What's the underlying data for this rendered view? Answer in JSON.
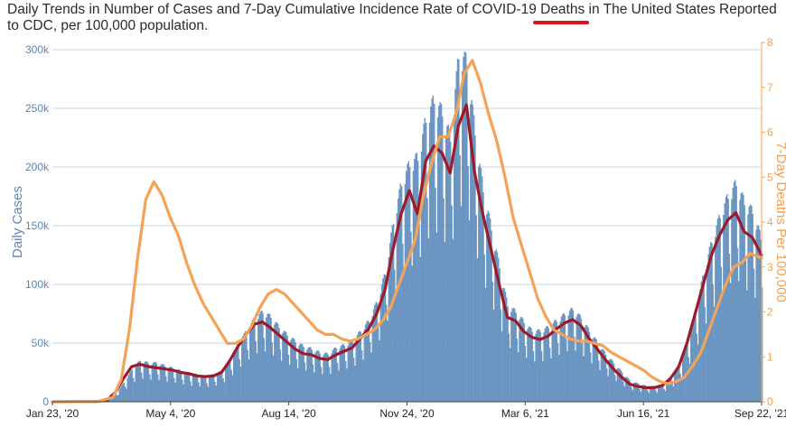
{
  "header": {
    "title": "Daily Trends in Number of Cases and 7-Day Cumulative Incidence Rate of COVID-19 Deaths in The United States Reported to CDC, per 100,000 population."
  },
  "colors": {
    "bars": "#6f9cc8",
    "bar_edge": "#4a78aa",
    "avg_line": "#9b1b2a",
    "deaths_line": "#f4a257",
    "grid": "#c8d6e8",
    "left_axis_text": "#5b86b5",
    "right_axis_text": "#f0a050",
    "underline_accent": "#d6141c"
  },
  "chart_data": {
    "type": "bar",
    "xlabel": "",
    "ylabel": "Daily Cases",
    "y2label": "7-Day Deaths Per 100,000",
    "ylim": [
      0,
      300000
    ],
    "y2lim": [
      0,
      8
    ],
    "yticks": [
      "0",
      "50k",
      "100k",
      "150k",
      "200k",
      "250k",
      "300k"
    ],
    "y2ticks": [
      "0",
      "1",
      "2",
      "3",
      "4",
      "5",
      "6",
      "7",
      "8"
    ],
    "xticks": [
      "Jan 23, '20",
      "May 4, '20",
      "Aug 14, '20",
      "Nov 24, '20",
      "Mar 6, '21",
      "Jun 16, '21",
      "Sep 22, '21"
    ],
    "x_start": "2020-01-23",
    "x_end": "2021-09-22",
    "grid": true,
    "series": [
      {
        "kind": "bar",
        "axis": "left",
        "unit": "cases",
        "points": [
          [
            "2020-01-23",
            0
          ],
          [
            "2020-03-01",
            200
          ],
          [
            "2020-03-10",
            1000
          ],
          [
            "2020-03-17",
            6000
          ],
          [
            "2020-03-24",
            15000
          ],
          [
            "2020-03-31",
            25000
          ],
          [
            "2020-04-07",
            32000
          ],
          [
            "2020-04-14",
            30000
          ],
          [
            "2020-04-21",
            30000
          ],
          [
            "2020-04-28",
            28000
          ],
          [
            "2020-05-05",
            26000
          ],
          [
            "2020-05-12",
            24000
          ],
          [
            "2020-05-19",
            22000
          ],
          [
            "2020-05-26",
            21000
          ],
          [
            "2020-06-02",
            20000
          ],
          [
            "2020-06-09",
            21000
          ],
          [
            "2020-06-16",
            24000
          ],
          [
            "2020-06-23",
            33000
          ],
          [
            "2020-06-30",
            45000
          ],
          [
            "2020-07-07",
            55000
          ],
          [
            "2020-07-14",
            65000
          ],
          [
            "2020-07-21",
            70000
          ],
          [
            "2020-07-28",
            66000
          ],
          [
            "2020-08-04",
            58000
          ],
          [
            "2020-08-11",
            52000
          ],
          [
            "2020-08-18",
            47000
          ],
          [
            "2020-08-25",
            43000
          ],
          [
            "2020-09-01",
            41000
          ],
          [
            "2020-09-08",
            38000
          ],
          [
            "2020-09-15",
            37000
          ],
          [
            "2020-09-22",
            42000
          ],
          [
            "2020-09-29",
            44000
          ],
          [
            "2020-10-06",
            47000
          ],
          [
            "2020-10-13",
            55000
          ],
          [
            "2020-10-20",
            63000
          ],
          [
            "2020-10-27",
            78000
          ],
          [
            "2020-11-03",
            100000
          ],
          [
            "2020-11-10",
            140000
          ],
          [
            "2020-11-17",
            170000
          ],
          [
            "2020-11-24",
            185000
          ],
          [
            "2020-12-01",
            190000
          ],
          [
            "2020-12-08",
            220000
          ],
          [
            "2020-12-15",
            235000
          ],
          [
            "2020-12-22",
            225000
          ],
          [
            "2020-12-29",
            205000
          ],
          [
            "2021-01-05",
            270000
          ],
          [
            "2021-01-12",
            265000
          ],
          [
            "2021-01-19",
            210000
          ],
          [
            "2021-01-26",
            165000
          ],
          [
            "2021-02-02",
            135000
          ],
          [
            "2021-02-09",
            105000
          ],
          [
            "2021-02-16",
            75000
          ],
          [
            "2021-02-23",
            70000
          ],
          [
            "2021-03-02",
            62000
          ],
          [
            "2021-03-09",
            55000
          ],
          [
            "2021-03-16",
            55000
          ],
          [
            "2021-03-23",
            58000
          ],
          [
            "2021-03-30",
            63000
          ],
          [
            "2021-04-06",
            68000
          ],
          [
            "2021-04-13",
            72000
          ],
          [
            "2021-04-20",
            65000
          ],
          [
            "2021-04-27",
            55000
          ],
          [
            "2021-05-04",
            46000
          ],
          [
            "2021-05-11",
            37000
          ],
          [
            "2021-05-18",
            30000
          ],
          [
            "2021-05-25",
            23000
          ],
          [
            "2021-06-01",
            16000
          ],
          [
            "2021-06-08",
            14000
          ],
          [
            "2021-06-15",
            12000
          ],
          [
            "2021-06-22",
            12000
          ],
          [
            "2021-06-29",
            13000
          ],
          [
            "2021-07-06",
            18000
          ],
          [
            "2021-07-13",
            28000
          ],
          [
            "2021-07-20",
            45000
          ],
          [
            "2021-07-27",
            70000
          ],
          [
            "2021-08-03",
            100000
          ],
          [
            "2021-08-10",
            125000
          ],
          [
            "2021-08-17",
            145000
          ],
          [
            "2021-08-24",
            160000
          ],
          [
            "2021-08-31",
            170000
          ],
          [
            "2021-09-07",
            155000
          ],
          [
            "2021-09-14",
            148000
          ],
          [
            "2021-09-22",
            125000
          ]
        ]
      },
      {
        "kind": "line",
        "axis": "left",
        "unit": "cases",
        "points": [
          [
            "2020-01-23",
            0
          ],
          [
            "2020-03-01",
            200
          ],
          [
            "2020-03-10",
            1500
          ],
          [
            "2020-03-17",
            8000
          ],
          [
            "2020-03-24",
            20000
          ],
          [
            "2020-03-31",
            30000
          ],
          [
            "2020-04-07",
            32000
          ],
          [
            "2020-04-14",
            30000
          ],
          [
            "2020-04-21",
            29000
          ],
          [
            "2020-04-28",
            28000
          ],
          [
            "2020-05-05",
            27000
          ],
          [
            "2020-05-12",
            25000
          ],
          [
            "2020-05-19",
            24000
          ],
          [
            "2020-05-26",
            22000
          ],
          [
            "2020-06-02",
            21500
          ],
          [
            "2020-06-09",
            22000
          ],
          [
            "2020-06-16",
            25000
          ],
          [
            "2020-06-23",
            35000
          ],
          [
            "2020-06-30",
            47000
          ],
          [
            "2020-07-07",
            57000
          ],
          [
            "2020-07-14",
            66000
          ],
          [
            "2020-07-21",
            68000
          ],
          [
            "2020-07-28",
            63000
          ],
          [
            "2020-08-04",
            57000
          ],
          [
            "2020-08-11",
            51000
          ],
          [
            "2020-08-18",
            45000
          ],
          [
            "2020-08-25",
            41000
          ],
          [
            "2020-09-01",
            40000
          ],
          [
            "2020-09-08",
            37000
          ],
          [
            "2020-09-15",
            36000
          ],
          [
            "2020-09-22",
            40000
          ],
          [
            "2020-09-29",
            43000
          ],
          [
            "2020-10-06",
            46000
          ],
          [
            "2020-10-13",
            54000
          ],
          [
            "2020-10-20",
            62000
          ],
          [
            "2020-10-27",
            75000
          ],
          [
            "2020-11-03",
            95000
          ],
          [
            "2020-11-10",
            130000
          ],
          [
            "2020-11-17",
            160000
          ],
          [
            "2020-11-24",
            180000
          ],
          [
            "2020-12-01",
            160000
          ],
          [
            "2020-12-08",
            205000
          ],
          [
            "2020-12-15",
            218000
          ],
          [
            "2020-12-22",
            212000
          ],
          [
            "2020-12-29",
            195000
          ],
          [
            "2021-01-05",
            235000
          ],
          [
            "2021-01-12",
            253000
          ],
          [
            "2021-01-19",
            195000
          ],
          [
            "2021-01-26",
            160000
          ],
          [
            "2021-02-02",
            130000
          ],
          [
            "2021-02-09",
            100000
          ],
          [
            "2021-02-16",
            72000
          ],
          [
            "2021-02-23",
            69000
          ],
          [
            "2021-03-02",
            60000
          ],
          [
            "2021-03-09",
            55000
          ],
          [
            "2021-03-16",
            53000
          ],
          [
            "2021-03-23",
            56000
          ],
          [
            "2021-03-30",
            62000
          ],
          [
            "2021-04-06",
            67000
          ],
          [
            "2021-04-13",
            70000
          ],
          [
            "2021-04-20",
            65000
          ],
          [
            "2021-04-27",
            54000
          ],
          [
            "2021-05-04",
            45000
          ],
          [
            "2021-05-11",
            36000
          ],
          [
            "2021-05-18",
            28000
          ],
          [
            "2021-05-25",
            21000
          ],
          [
            "2021-06-01",
            15000
          ],
          [
            "2021-06-08",
            13000
          ],
          [
            "2021-06-15",
            12000
          ],
          [
            "2021-06-22",
            12000
          ],
          [
            "2021-06-29",
            14000
          ],
          [
            "2021-07-06",
            20000
          ],
          [
            "2021-07-13",
            30000
          ],
          [
            "2021-07-20",
            50000
          ],
          [
            "2021-07-27",
            75000
          ],
          [
            "2021-08-03",
            100000
          ],
          [
            "2021-08-10",
            125000
          ],
          [
            "2021-08-17",
            142000
          ],
          [
            "2021-08-24",
            155000
          ],
          [
            "2021-08-31",
            161000
          ],
          [
            "2021-09-07",
            145000
          ],
          [
            "2021-09-14",
            140000
          ],
          [
            "2021-09-22",
            125000
          ]
        ]
      },
      {
        "kind": "line",
        "axis": "right",
        "unit": "deaths per 100,000",
        "points": [
          [
            "2020-01-23",
            0
          ],
          [
            "2020-03-01",
            0
          ],
          [
            "2020-03-15",
            0.1
          ],
          [
            "2020-03-22",
            0.5
          ],
          [
            "2020-03-29",
            1.6
          ],
          [
            "2020-04-05",
            3.2
          ],
          [
            "2020-04-12",
            4.5
          ],
          [
            "2020-04-19",
            4.9
          ],
          [
            "2020-04-26",
            4.6
          ],
          [
            "2020-05-03",
            4.1
          ],
          [
            "2020-05-10",
            3.7
          ],
          [
            "2020-05-17",
            3.1
          ],
          [
            "2020-05-24",
            2.6
          ],
          [
            "2020-05-31",
            2.2
          ],
          [
            "2020-06-07",
            1.9
          ],
          [
            "2020-06-14",
            1.6
          ],
          [
            "2020-06-21",
            1.3
          ],
          [
            "2020-06-28",
            1.3
          ],
          [
            "2020-07-05",
            1.4
          ],
          [
            "2020-07-12",
            1.7
          ],
          [
            "2020-07-19",
            2.1
          ],
          [
            "2020-07-26",
            2.4
          ],
          [
            "2020-08-02",
            2.5
          ],
          [
            "2020-08-09",
            2.4
          ],
          [
            "2020-08-16",
            2.2
          ],
          [
            "2020-08-23",
            2.0
          ],
          [
            "2020-08-30",
            1.8
          ],
          [
            "2020-09-06",
            1.6
          ],
          [
            "2020-09-13",
            1.5
          ],
          [
            "2020-09-20",
            1.5
          ],
          [
            "2020-09-27",
            1.4
          ],
          [
            "2020-10-04",
            1.35
          ],
          [
            "2020-10-11",
            1.4
          ],
          [
            "2020-10-18",
            1.5
          ],
          [
            "2020-10-25",
            1.6
          ],
          [
            "2020-11-01",
            1.8
          ],
          [
            "2020-11-08",
            2.1
          ],
          [
            "2020-11-15",
            2.6
          ],
          [
            "2020-11-22",
            3.1
          ],
          [
            "2020-11-29",
            3.6
          ],
          [
            "2020-12-06",
            4.6
          ],
          [
            "2020-12-13",
            5.3
          ],
          [
            "2020-12-20",
            5.9
          ],
          [
            "2020-12-27",
            5.9
          ],
          [
            "2021-01-03",
            6.4
          ],
          [
            "2021-01-10",
            7.3
          ],
          [
            "2021-01-17",
            7.6
          ],
          [
            "2021-01-24",
            7.1
          ],
          [
            "2021-01-31",
            6.4
          ],
          [
            "2021-02-07",
            5.8
          ],
          [
            "2021-02-14",
            5.0
          ],
          [
            "2021-02-21",
            4.1
          ],
          [
            "2021-02-28",
            3.5
          ],
          [
            "2021-03-07",
            2.9
          ],
          [
            "2021-03-14",
            2.3
          ],
          [
            "2021-03-21",
            1.9
          ],
          [
            "2021-03-28",
            1.6
          ],
          [
            "2021-04-04",
            1.5
          ],
          [
            "2021-04-11",
            1.4
          ],
          [
            "2021-04-18",
            1.35
          ],
          [
            "2021-04-25",
            1.35
          ],
          [
            "2021-05-02",
            1.3
          ],
          [
            "2021-05-09",
            1.25
          ],
          [
            "2021-05-16",
            1.1
          ],
          [
            "2021-05-23",
            1.0
          ],
          [
            "2021-05-30",
            0.9
          ],
          [
            "2021-06-06",
            0.8
          ],
          [
            "2021-06-13",
            0.7
          ],
          [
            "2021-06-20",
            0.55
          ],
          [
            "2021-06-27",
            0.45
          ],
          [
            "2021-07-04",
            0.4
          ],
          [
            "2021-07-11",
            0.45
          ],
          [
            "2021-07-18",
            0.55
          ],
          [
            "2021-07-25",
            0.8
          ],
          [
            "2021-08-01",
            1.1
          ],
          [
            "2021-08-08",
            1.6
          ],
          [
            "2021-08-15",
            2.1
          ],
          [
            "2021-08-22",
            2.6
          ],
          [
            "2021-08-29",
            3.0
          ],
          [
            "2021-09-05",
            3.1
          ],
          [
            "2021-09-12",
            3.3
          ],
          [
            "2021-09-22",
            3.2
          ]
        ]
      }
    ]
  }
}
